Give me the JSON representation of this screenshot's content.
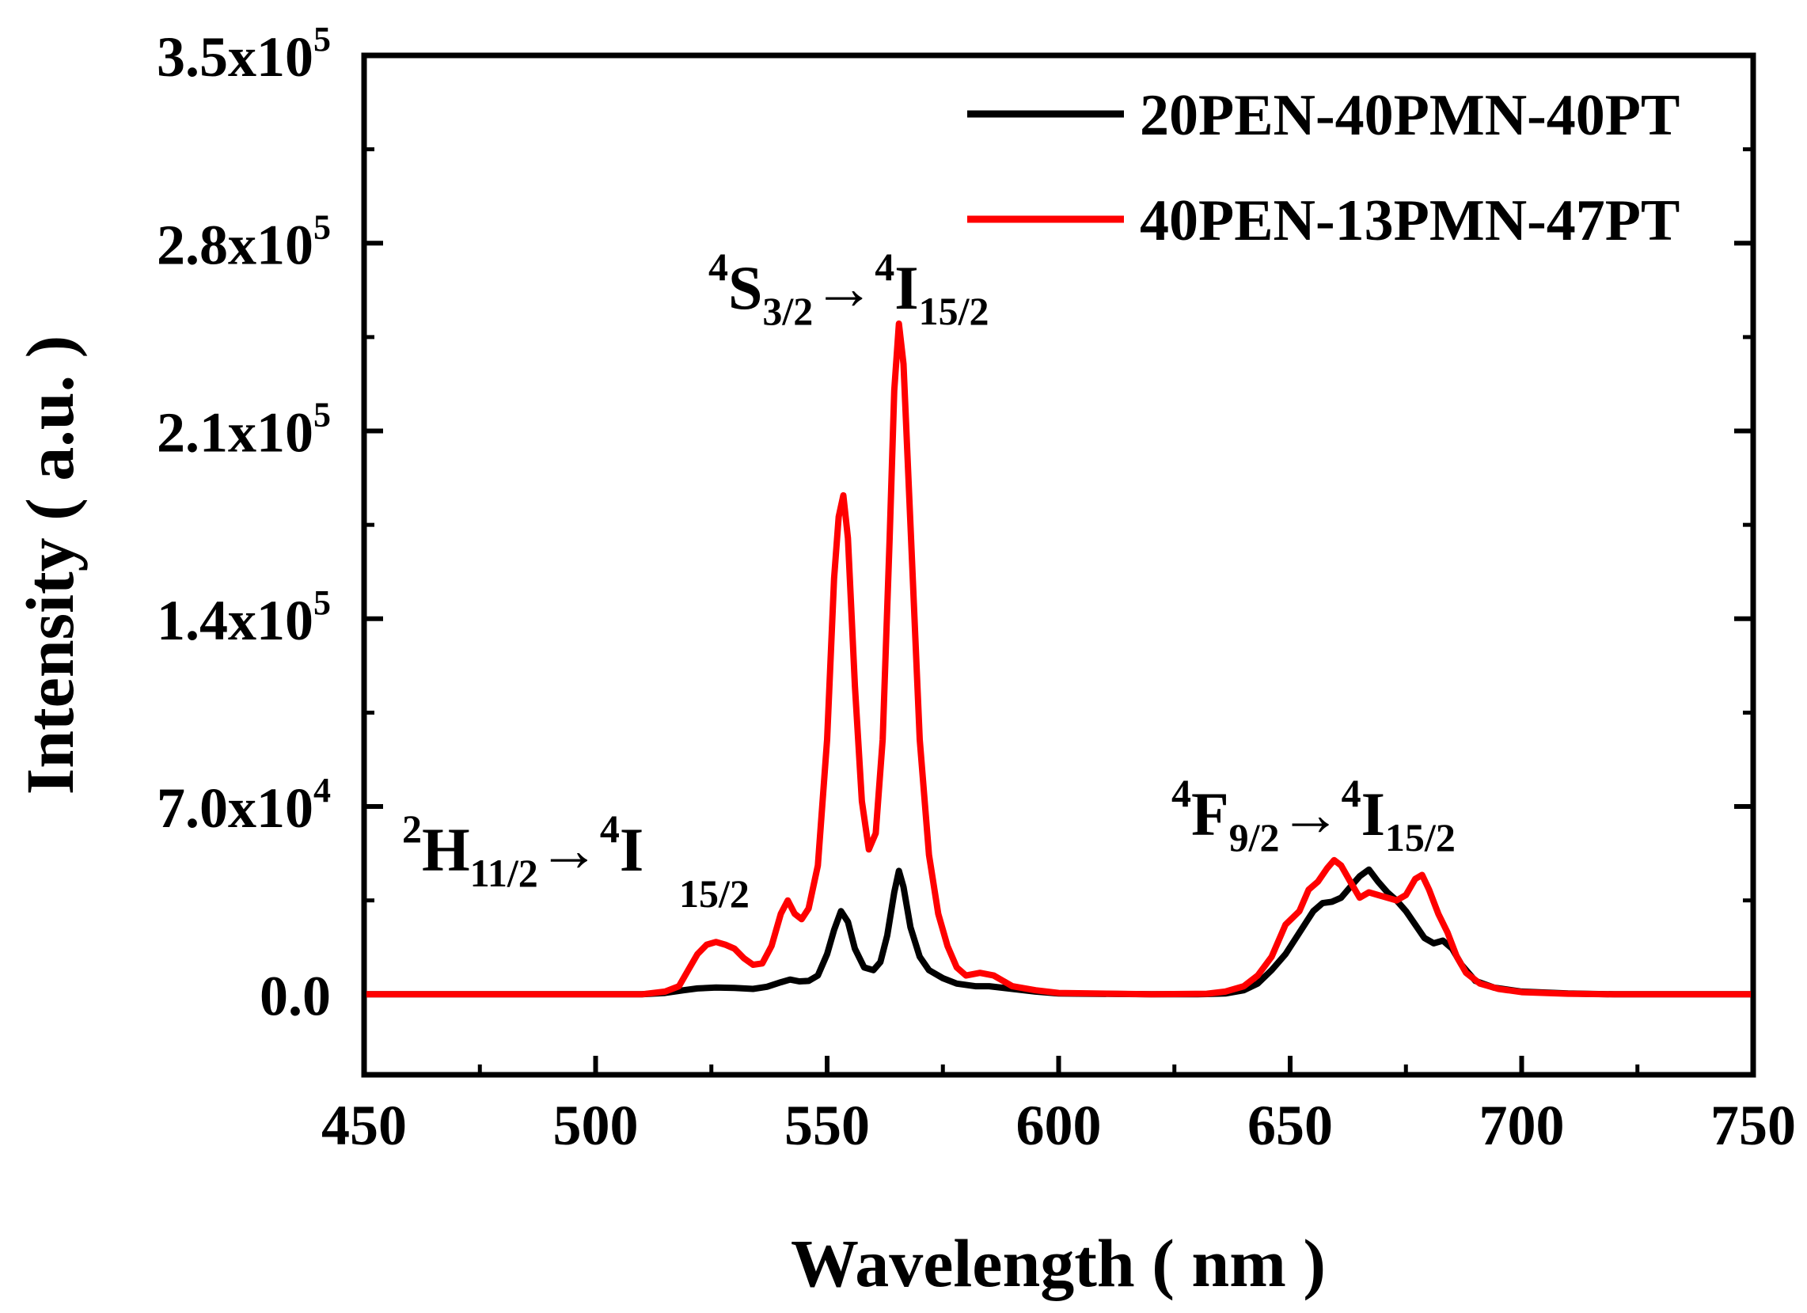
{
  "chart_data": {
    "type": "line",
    "title": "",
    "xlabel": "Wavelength ( nm )",
    "ylabel": "Intensity ( a.u. )",
    "xlim": [
      450,
      750
    ],
    "ylim": [
      -30000,
      350000
    ],
    "x_ticks": [
      450,
      500,
      550,
      600,
      650,
      700,
      750
    ],
    "x_tick_labels": [
      "450",
      "500",
      "550",
      "600",
      "650",
      "700",
      "750"
    ],
    "y_ticks": [
      {
        "value": 0,
        "mantissa": "0.0",
        "base": "",
        "exp": ""
      },
      {
        "value": 70000,
        "mantissa": "7.0",
        "base": "x10",
        "exp": "4"
      },
      {
        "value": 140000,
        "mantissa": "1.4",
        "base": "x10",
        "exp": "5"
      },
      {
        "value": 210000,
        "mantissa": "2.1",
        "base": "x10",
        "exp": "5"
      },
      {
        "value": 280000,
        "mantissa": "2.8",
        "base": "x10",
        "exp": "5"
      },
      {
        "value": 350000,
        "mantissa": "3.5",
        "base": "x10",
        "exp": "5"
      }
    ],
    "legend_position": "top-right",
    "series": [
      {
        "name": "20PEN-40PMN-40PT",
        "color": "#000000",
        "points": [
          [
            450,
            0
          ],
          [
            500,
            0
          ],
          [
            510,
            0
          ],
          [
            515,
            500
          ],
          [
            519,
            1500
          ],
          [
            522,
            2200
          ],
          [
            526,
            2500
          ],
          [
            530,
            2400
          ],
          [
            534,
            2000
          ],
          [
            537,
            2800
          ],
          [
            540,
            4500
          ],
          [
            542,
            5500
          ],
          [
            544,
            4800
          ],
          [
            546,
            5000
          ],
          [
            548,
            7000
          ],
          [
            550,
            15000
          ],
          [
            551.5,
            24000
          ],
          [
            553,
            31000
          ],
          [
            554.5,
            27000
          ],
          [
            556,
            17000
          ],
          [
            558,
            10000
          ],
          [
            560,
            9000
          ],
          [
            561.5,
            12000
          ],
          [
            563,
            22000
          ],
          [
            564.5,
            38000
          ],
          [
            565.5,
            46000
          ],
          [
            566.5,
            40000
          ],
          [
            568,
            25000
          ],
          [
            570,
            14000
          ],
          [
            572,
            9000
          ],
          [
            575,
            6000
          ],
          [
            578,
            4000
          ],
          [
            582,
            3000
          ],
          [
            585,
            3000
          ],
          [
            590,
            2000
          ],
          [
            595,
            1000
          ],
          [
            600,
            300
          ],
          [
            620,
            0
          ],
          [
            630,
            0
          ],
          [
            636,
            300
          ],
          [
            640,
            1500
          ],
          [
            643,
            4000
          ],
          [
            646,
            9000
          ],
          [
            649,
            15000
          ],
          [
            652,
            23000
          ],
          [
            655,
            31000
          ],
          [
            657,
            34000
          ],
          [
            659,
            34500
          ],
          [
            661,
            36000
          ],
          [
            663,
            40000
          ],
          [
            665,
            44000
          ],
          [
            667,
            46500
          ],
          [
            669,
            42000
          ],
          [
            671,
            38000
          ],
          [
            673,
            35000
          ],
          [
            675,
            31000
          ],
          [
            677,
            26000
          ],
          [
            679,
            21000
          ],
          [
            681,
            19000
          ],
          [
            683,
            20000
          ],
          [
            685,
            17000
          ],
          [
            687,
            11000
          ],
          [
            690,
            5000
          ],
          [
            694,
            2500
          ],
          [
            700,
            1000
          ],
          [
            710,
            300
          ],
          [
            720,
            0
          ],
          [
            750,
            0
          ]
        ]
      },
      {
        "name": "40PEN-13PMN-47PT",
        "color": "#ff0000",
        "points": [
          [
            450,
            0
          ],
          [
            500,
            0
          ],
          [
            510,
            0
          ],
          [
            515,
            1000
          ],
          [
            518,
            3000
          ],
          [
            520,
            9000
          ],
          [
            522,
            15000
          ],
          [
            524,
            18500
          ],
          [
            526,
            19500
          ],
          [
            528,
            18500
          ],
          [
            530,
            17000
          ],
          [
            532,
            13500
          ],
          [
            534,
            11000
          ],
          [
            536,
            11500
          ],
          [
            538,
            18000
          ],
          [
            540,
            30000
          ],
          [
            541.5,
            35000
          ],
          [
            543,
            30000
          ],
          [
            544.5,
            28000
          ],
          [
            546,
            32000
          ],
          [
            548,
            48000
          ],
          [
            550,
            95000
          ],
          [
            551.5,
            155000
          ],
          [
            552.5,
            178000
          ],
          [
            553.5,
            186000
          ],
          [
            554.5,
            170000
          ],
          [
            556,
            115000
          ],
          [
            557.5,
            72000
          ],
          [
            559,
            54000
          ],
          [
            560.5,
            60000
          ],
          [
            562,
            95000
          ],
          [
            563.5,
            170000
          ],
          [
            564.5,
            225000
          ],
          [
            565.5,
            250000
          ],
          [
            566.5,
            235000
          ],
          [
            568,
            175000
          ],
          [
            570,
            95000
          ],
          [
            572,
            52000
          ],
          [
            574,
            30000
          ],
          [
            576,
            18000
          ],
          [
            578,
            10000
          ],
          [
            580,
            7000
          ],
          [
            583,
            8000
          ],
          [
            586,
            7000
          ],
          [
            590,
            3000
          ],
          [
            595,
            1500
          ],
          [
            600,
            500
          ],
          [
            620,
            0
          ],
          [
            632,
            200
          ],
          [
            636,
            1000
          ],
          [
            640,
            3000
          ],
          [
            643,
            7000
          ],
          [
            646,
            14000
          ],
          [
            649,
            26000
          ],
          [
            652,
            31000
          ],
          [
            654,
            39000
          ],
          [
            656,
            42000
          ],
          [
            658,
            47000
          ],
          [
            659.5,
            50000
          ],
          [
            661,
            48000
          ],
          [
            663,
            42000
          ],
          [
            665,
            36000
          ],
          [
            667,
            38000
          ],
          [
            669,
            37000
          ],
          [
            671,
            36000
          ],
          [
            673,
            35000
          ],
          [
            675,
            37000
          ],
          [
            677,
            43000
          ],
          [
            678.5,
            44500
          ],
          [
            680,
            39000
          ],
          [
            682,
            30000
          ],
          [
            684,
            23000
          ],
          [
            686,
            14000
          ],
          [
            688,
            8000
          ],
          [
            691,
            4000
          ],
          [
            695,
            2000
          ],
          [
            700,
            800
          ],
          [
            710,
            200
          ],
          [
            720,
            0
          ],
          [
            750,
            0
          ]
        ]
      }
    ],
    "annotations": [
      {
        "sup": "2",
        "base": "H",
        "sub": "11/2",
        "arrow": "→",
        "sup2": "4",
        "base2": "I",
        "sub2": "15/2"
      },
      {
        "sup": "4",
        "base": "S",
        "sub": "3/2",
        "arrow": "→",
        "sup2": "4",
        "base2": "I",
        "sub2": "15/2"
      },
      {
        "sup": "4",
        "base": "F",
        "sub": "9/2",
        "arrow": "→",
        "sup2": "4",
        "base2": "I",
        "sub2": "15/2"
      }
    ]
  }
}
